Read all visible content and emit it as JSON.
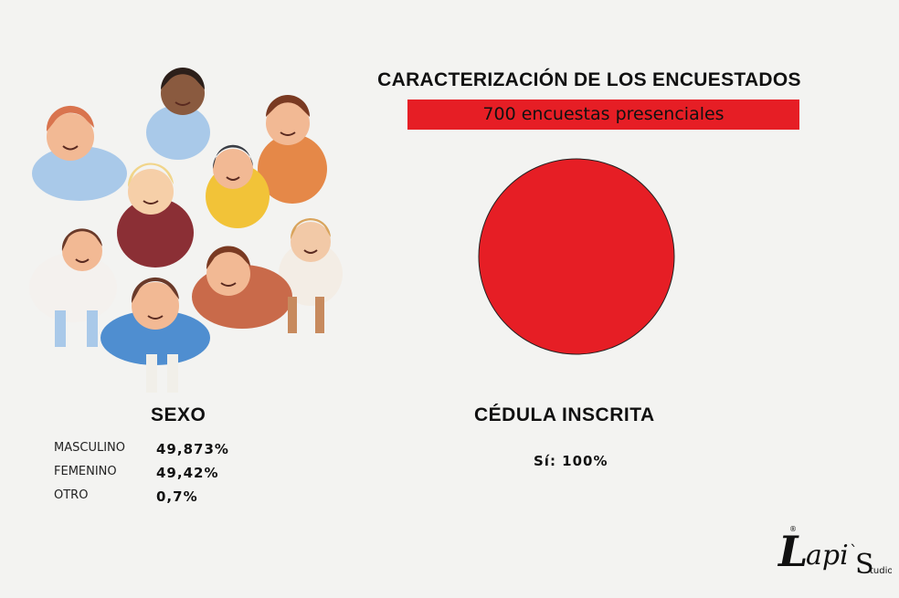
{
  "header": {
    "title": "CARACTERIZACIÓN DE LOS ENCUESTADOS",
    "subtitle": "700 encuestas presenciales"
  },
  "sexo": {
    "title": "SEXO",
    "items": [
      {
        "label": "MASCULINO",
        "value": "49,873%"
      },
      {
        "label": "FEMENINO",
        "value": "49,42%"
      },
      {
        "label": "OTRO",
        "value": "0,7%"
      }
    ]
  },
  "cedula": {
    "title": "CÉDULA INSCRITA",
    "value_text": "Sí: 100%"
  },
  "logo": {
    "text": "Lapi's Studio"
  },
  "colors": {
    "accent": "#e61e25",
    "pie": "#e61e25"
  },
  "chart_data": {
    "type": "pie",
    "title": "CÉDULA INSCRITA",
    "labels": [
      "Sí"
    ],
    "values": [
      100
    ]
  }
}
